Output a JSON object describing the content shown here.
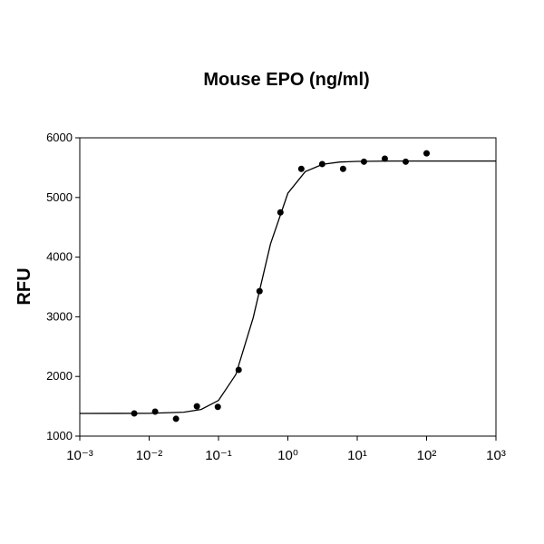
{
  "chart_data": {
    "type": "scatter",
    "title": "Mouse EPO (ng/ml)",
    "y_label": "RFU",
    "x_scale": "log",
    "xlim": [
      0.001,
      1000
    ],
    "xticks": [
      {
        "value": 0.001,
        "label": "10⁻³"
      },
      {
        "value": 0.01,
        "label": "10⁻²"
      },
      {
        "value": 0.1,
        "label": "10⁻¹"
      },
      {
        "value": 1,
        "label": "10⁰"
      },
      {
        "value": 10,
        "label": "10¹"
      },
      {
        "value": 100,
        "label": "10²"
      },
      {
        "value": 1000,
        "label": "10³"
      }
    ],
    "ylim": [
      1000,
      6000
    ],
    "yticks": [
      1000,
      2000,
      3000,
      4000,
      5000,
      6000
    ],
    "series": [
      {
        "type": "scatter",
        "color": "#000000",
        "x": [
          0.0061,
          0.0122,
          0.0244,
          0.0488,
          0.0977,
          0.1953,
          0.3906,
          0.7813,
          1.5625,
          3.125,
          6.25,
          12.5,
          25,
          50,
          100
        ],
        "values": [
          1380,
          1410,
          1290,
          1500,
          1490,
          2110,
          3430,
          4750,
          5480,
          5560,
          5480,
          5600,
          5650,
          5600,
          5740
        ]
      },
      {
        "type": "line",
        "color": "#000000",
        "x": [
          0.001,
          0.01,
          0.0316,
          0.0562,
          0.1,
          0.178,
          0.316,
          0.562,
          1,
          1.78,
          3.16,
          5.62,
          10,
          31.6,
          1000
        ],
        "values": [
          1380,
          1382,
          1401,
          1447,
          1598,
          2033,
          2982,
          4221,
          5071,
          5433,
          5556,
          5594,
          5605,
          5610,
          5610
        ]
      }
    ]
  }
}
